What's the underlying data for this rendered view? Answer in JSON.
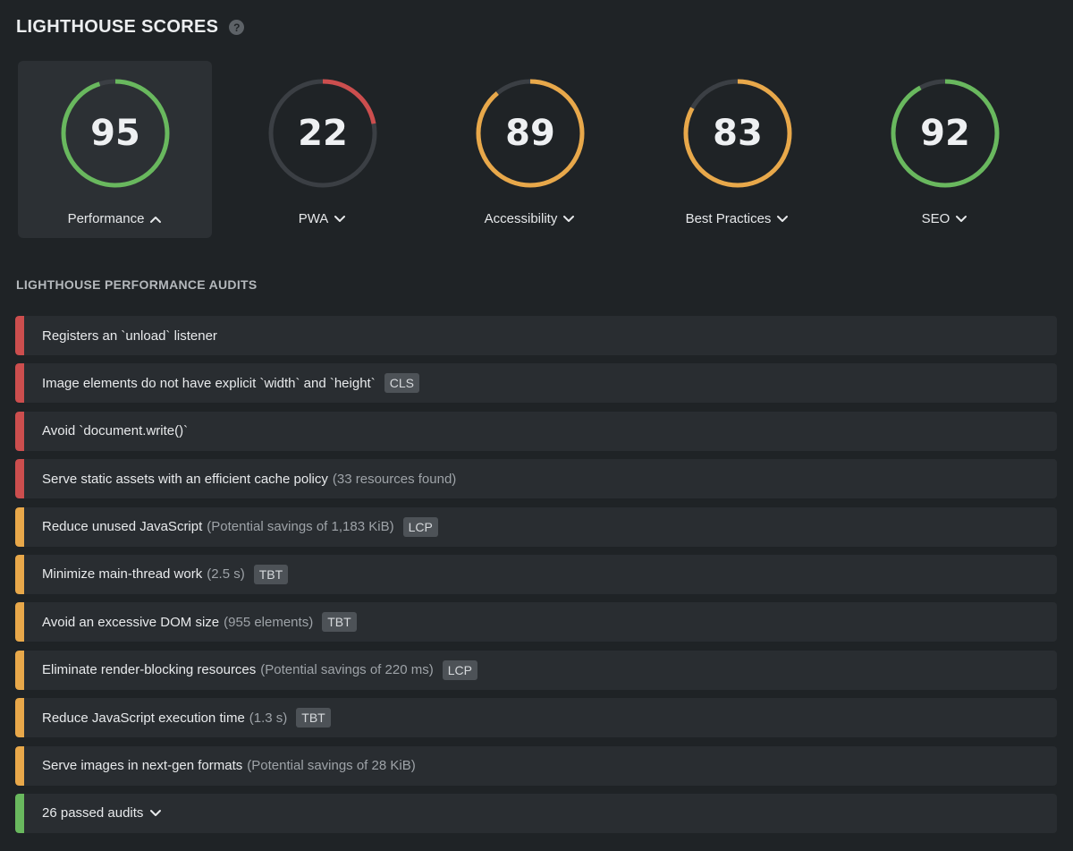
{
  "header": {
    "title": "LIGHTHOUSE SCORES",
    "help_glyph": "?"
  },
  "colors": {
    "good": "#69b85e",
    "average": "#e8a84a",
    "poor": "#cc4e4e",
    "track": "#3b3f44"
  },
  "scores": [
    {
      "label": "Performance",
      "value": "95",
      "score": 95,
      "status": "good",
      "expanded": true
    },
    {
      "label": "PWA",
      "value": "22",
      "score": 22,
      "status": "poor",
      "expanded": false
    },
    {
      "label": "Accessibility",
      "value": "89",
      "score": 89,
      "status": "average",
      "expanded": false
    },
    {
      "label": "Best Practices",
      "value": "83",
      "score": 83,
      "status": "average",
      "expanded": false
    },
    {
      "label": "SEO",
      "value": "92",
      "score": 92,
      "status": "good",
      "expanded": false
    }
  ],
  "audits_section": {
    "title": "LIGHTHOUSE PERFORMANCE AUDITS",
    "items": [
      {
        "text": "Registers an `unload` listener",
        "detail": "",
        "tag": "",
        "status": "red"
      },
      {
        "text": "Image elements do not have explicit `width` and `height`",
        "detail": "",
        "tag": "CLS",
        "status": "red"
      },
      {
        "text": "Avoid `document.write()`",
        "detail": "",
        "tag": "",
        "status": "red"
      },
      {
        "text": "Serve static assets with an efficient cache policy",
        "detail": "(33 resources found)",
        "tag": "",
        "status": "red"
      },
      {
        "text": "Reduce unused JavaScript",
        "detail": "(Potential savings of 1,183 KiB)",
        "tag": "LCP",
        "status": "orange"
      },
      {
        "text": "Minimize main-thread work",
        "detail": "(2.5 s)",
        "tag": "TBT",
        "status": "orange"
      },
      {
        "text": "Avoid an excessive DOM size",
        "detail": "(955 elements)",
        "tag": "TBT",
        "status": "orange"
      },
      {
        "text": "Eliminate render-blocking resources",
        "detail": "(Potential savings of 220 ms)",
        "tag": "LCP",
        "status": "orange"
      },
      {
        "text": "Reduce JavaScript execution time",
        "detail": "(1.3 s)",
        "tag": "TBT",
        "status": "orange"
      },
      {
        "text": "Serve images in next-gen formats",
        "detail": "(Potential savings of 28 KiB)",
        "tag": "",
        "status": "orange"
      }
    ],
    "passed": {
      "text": "26 passed audits",
      "status": "green"
    }
  }
}
